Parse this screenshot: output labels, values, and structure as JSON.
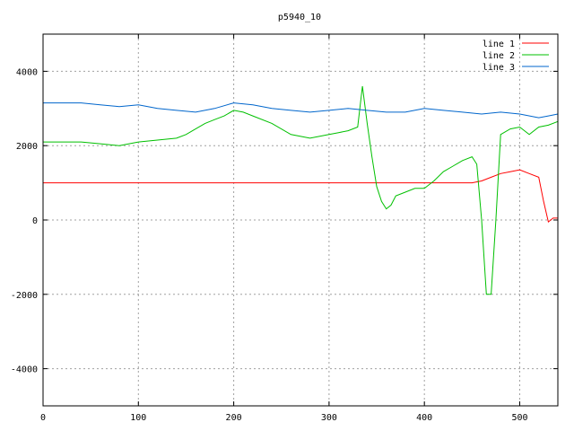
{
  "chart_data": {
    "type": "line",
    "title": "p5940_10",
    "xlabel": "",
    "ylabel": "",
    "xlim": [
      0,
      540
    ],
    "ylim": [
      -5000,
      5000
    ],
    "x_ticks": [
      0,
      100,
      200,
      300,
      400,
      500
    ],
    "y_ticks": [
      -4000,
      -2000,
      0,
      2000,
      4000
    ],
    "grid": true,
    "legend_position": "top-right",
    "series": [
      {
        "name": "line 1",
        "color": "#ff0000",
        "x": [
          0,
          450,
          460,
          470,
          480,
          490,
          500,
          510,
          520,
          525,
          530,
          535,
          540
        ],
        "y": [
          1000,
          1000,
          1050,
          1150,
          1250,
          1300,
          1350,
          1250,
          1150,
          500,
          -50,
          50,
          50
        ]
      },
      {
        "name": "line 2",
        "color": "#00c000",
        "x": [
          0,
          20,
          40,
          60,
          80,
          100,
          120,
          140,
          150,
          160,
          170,
          180,
          190,
          200,
          210,
          220,
          240,
          260,
          280,
          300,
          310,
          320,
          330,
          335,
          340,
          345,
          350,
          355,
          360,
          365,
          370,
          380,
          390,
          400,
          410,
          420,
          430,
          440,
          450,
          455,
          460,
          465,
          470,
          475,
          480,
          490,
          500,
          510,
          520,
          530,
          540
        ],
        "y": [
          2100,
          2100,
          2100,
          2050,
          2000,
          2100,
          2150,
          2200,
          2300,
          2450,
          2600,
          2700,
          2800,
          2950,
          2900,
          2800,
          2600,
          2300,
          2200,
          2300,
          2350,
          2400,
          2500,
          3600,
          2600,
          1700,
          900,
          500,
          300,
          400,
          650,
          750,
          850,
          850,
          1050,
          1300,
          1450,
          1600,
          1700,
          1500,
          0,
          -2000,
          -2000,
          0,
          2300,
          2450,
          2500,
          2300,
          2500,
          2550,
          2650
        ]
      },
      {
        "name": "line 3",
        "color": "#0066cc",
        "x": [
          0,
          20,
          40,
          60,
          80,
          100,
          120,
          140,
          160,
          180,
          200,
          220,
          240,
          260,
          280,
          300,
          320,
          340,
          360,
          380,
          400,
          420,
          440,
          460,
          480,
          500,
          520,
          530,
          540
        ],
        "y": [
          3150,
          3150,
          3150,
          3100,
          3050,
          3100,
          3000,
          2950,
          2900,
          3000,
          3150,
          3100,
          3000,
          2950,
          2900,
          2950,
          3000,
          2950,
          2900,
          2900,
          3000,
          2950,
          2900,
          2850,
          2900,
          2850,
          2750,
          2800,
          2850
        ]
      }
    ]
  }
}
